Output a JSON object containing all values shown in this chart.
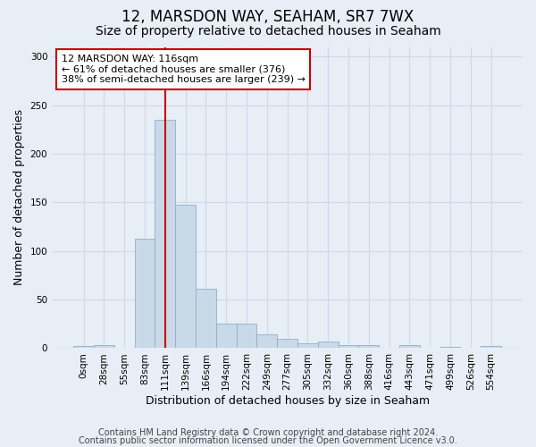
{
  "title1": "12, MARSDON WAY, SEAHAM, SR7 7WX",
  "title2": "Size of property relative to detached houses in Seaham",
  "xlabel": "Distribution of detached houses by size in Seaham",
  "ylabel": "Number of detached properties",
  "footer1": "Contains HM Land Registry data © Crown copyright and database right 2024.",
  "footer2": "Contains public sector information licensed under the Open Government Licence v3.0.",
  "bar_labels": [
    "0sqm",
    "28sqm",
    "55sqm",
    "83sqm",
    "111sqm",
    "139sqm",
    "166sqm",
    "194sqm",
    "222sqm",
    "249sqm",
    "277sqm",
    "305sqm",
    "332sqm",
    "360sqm",
    "388sqm",
    "416sqm",
    "443sqm",
    "471sqm",
    "499sqm",
    "526sqm",
    "554sqm"
  ],
  "bar_values": [
    2,
    3,
    0,
    113,
    235,
    148,
    61,
    25,
    25,
    14,
    10,
    5,
    7,
    3,
    3,
    0,
    3,
    0,
    1,
    0,
    2
  ],
  "bar_color": "#c9d9e8",
  "bar_edge_color": "#8ab0cc",
  "property_line_index": 4,
  "property_line_color": "#cc0000",
  "annotation_text": "12 MARSDON WAY: 116sqm\n← 61% of detached houses are smaller (376)\n38% of semi-detached houses are larger (239) →",
  "annotation_box_color": "#ffffff",
  "annotation_box_edge": "#cc0000",
  "ylim": [
    0,
    310
  ],
  "grid_color": "#d0d8e8",
  "bg_color": "#e8eef6",
  "title1_fontsize": 12,
  "title2_fontsize": 10,
  "xlabel_fontsize": 9,
  "ylabel_fontsize": 9,
  "tick_fontsize": 7.5,
  "annotation_fontsize": 8,
  "footer_fontsize": 7
}
